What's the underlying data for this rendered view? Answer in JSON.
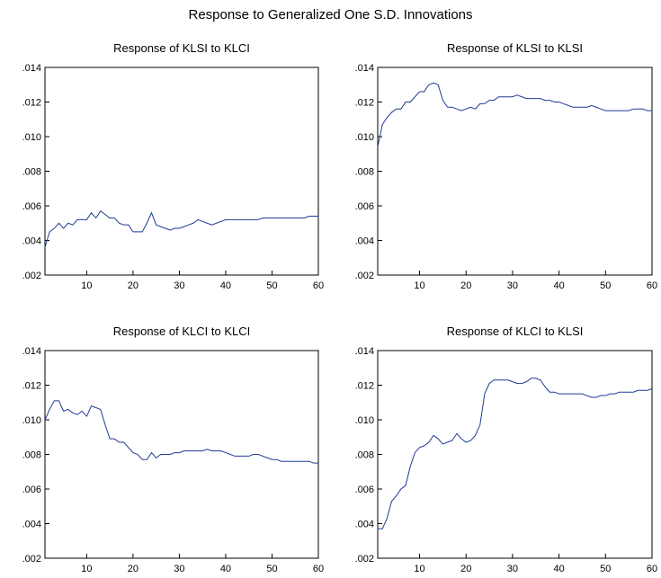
{
  "title": "Response to Generalized One S.D. Innovations",
  "colors": {
    "line": "#1f3a93",
    "frame": "#000000"
  },
  "chart_data": [
    {
      "type": "line",
      "title": "Response of KLSI to KLCI",
      "xlim": [
        1,
        60
      ],
      "ylim": [
        0.002,
        0.014
      ],
      "xticks": [
        10,
        20,
        30,
        40,
        50,
        60
      ],
      "yticks": [
        0.002,
        0.004,
        0.006,
        0.008,
        0.01,
        0.012,
        0.014
      ],
      "ytick_labels": [
        ".002",
        ".004",
        ".006",
        ".008",
        ".010",
        ".012",
        ".014"
      ],
      "series": [
        {
          "values": [
            0.0036,
            0.0045,
            0.0047,
            0.005,
            0.0047,
            0.005,
            0.0049,
            0.0052,
            0.0052,
            0.0052,
            0.0056,
            0.0053,
            0.0057,
            0.0055,
            0.0053,
            0.0053,
            0.005,
            0.0049,
            0.0049,
            0.0045,
            0.0045,
            0.0045,
            0.005,
            0.0056,
            0.0049,
            0.0048,
            0.0047,
            0.0046,
            0.0047,
            0.0047,
            0.0048,
            0.0049,
            0.005,
            0.0052,
            0.0051,
            0.005,
            0.0049,
            0.005,
            0.0051,
            0.0052,
            0.0052,
            0.0052,
            0.0052,
            0.0052,
            0.0052,
            0.0052,
            0.0052,
            0.0053,
            0.0053,
            0.0053,
            0.0053,
            0.0053,
            0.0053,
            0.0053,
            0.0053,
            0.0053,
            0.0053,
            0.0054,
            0.0054,
            0.0054
          ]
        }
      ]
    },
    {
      "type": "line",
      "title": "Response of KLSI to KLSI",
      "xlim": [
        1,
        60
      ],
      "ylim": [
        0.002,
        0.014
      ],
      "xticks": [
        10,
        20,
        30,
        40,
        50,
        60
      ],
      "yticks": [
        0.002,
        0.004,
        0.006,
        0.008,
        0.01,
        0.012,
        0.014
      ],
      "ytick_labels": [
        ".002",
        ".004",
        ".006",
        ".008",
        ".010",
        ".012",
        ".014"
      ],
      "series": [
        {
          "values": [
            0.0094,
            0.0107,
            0.0111,
            0.0114,
            0.0116,
            0.0116,
            0.012,
            0.012,
            0.0123,
            0.0126,
            0.0126,
            0.013,
            0.0131,
            0.013,
            0.0121,
            0.0117,
            0.0117,
            0.0116,
            0.0115,
            0.0116,
            0.0117,
            0.0116,
            0.0119,
            0.0119,
            0.0121,
            0.0121,
            0.0123,
            0.0123,
            0.0123,
            0.0123,
            0.0124,
            0.0123,
            0.0122,
            0.0122,
            0.0122,
            0.0122,
            0.0121,
            0.0121,
            0.012,
            0.012,
            0.0119,
            0.0118,
            0.0117,
            0.0117,
            0.0117,
            0.0117,
            0.0118,
            0.0117,
            0.0116,
            0.0115,
            0.0115,
            0.0115,
            0.0115,
            0.0115,
            0.0115,
            0.0116,
            0.0116,
            0.0116,
            0.0115,
            0.0115
          ]
        }
      ]
    },
    {
      "type": "line",
      "title": "Response of KLCI to KLCI",
      "xlim": [
        1,
        60
      ],
      "ylim": [
        0.002,
        0.014
      ],
      "xticks": [
        10,
        20,
        30,
        40,
        50,
        60
      ],
      "yticks": [
        0.002,
        0.004,
        0.006,
        0.008,
        0.01,
        0.012,
        0.014
      ],
      "ytick_labels": [
        ".002",
        ".004",
        ".006",
        ".008",
        ".010",
        ".012",
        ".014"
      ],
      "series": [
        {
          "values": [
            0.01,
            0.0106,
            0.0111,
            0.0111,
            0.0105,
            0.0106,
            0.0104,
            0.0103,
            0.0105,
            0.0102,
            0.0108,
            0.0107,
            0.0106,
            0.0097,
            0.0089,
            0.0089,
            0.0087,
            0.0087,
            0.0084,
            0.0081,
            0.008,
            0.0077,
            0.0077,
            0.0081,
            0.0078,
            0.008,
            0.008,
            0.008,
            0.0081,
            0.0081,
            0.0082,
            0.0082,
            0.0082,
            0.0082,
            0.0082,
            0.0083,
            0.0082,
            0.0082,
            0.0082,
            0.0081,
            0.008,
            0.0079,
            0.0079,
            0.0079,
            0.0079,
            0.008,
            0.008,
            0.0079,
            0.0078,
            0.0077,
            0.0077,
            0.0076,
            0.0076,
            0.0076,
            0.0076,
            0.0076,
            0.0076,
            0.0076,
            0.0075,
            0.0075
          ]
        }
      ]
    },
    {
      "type": "line",
      "title": "Response of KLCI to KLSI",
      "xlim": [
        1,
        60
      ],
      "ylim": [
        0.002,
        0.014
      ],
      "xticks": [
        10,
        20,
        30,
        40,
        50,
        60
      ],
      "yticks": [
        0.002,
        0.004,
        0.006,
        0.008,
        0.01,
        0.012,
        0.014
      ],
      "ytick_labels": [
        ".002",
        ".004",
        ".006",
        ".008",
        ".010",
        ".012",
        ".014"
      ],
      "series": [
        {
          "values": [
            0.0037,
            0.0037,
            0.0043,
            0.0053,
            0.0056,
            0.006,
            0.0062,
            0.0073,
            0.0081,
            0.0084,
            0.0085,
            0.0087,
            0.0091,
            0.0089,
            0.0086,
            0.0087,
            0.0088,
            0.0092,
            0.0089,
            0.0087,
            0.0088,
            0.0091,
            0.0097,
            0.0115,
            0.0121,
            0.0123,
            0.0123,
            0.0123,
            0.0123,
            0.0122,
            0.0121,
            0.0121,
            0.0122,
            0.0124,
            0.0124,
            0.0123,
            0.0119,
            0.0116,
            0.0116,
            0.0115,
            0.0115,
            0.0115,
            0.0115,
            0.0115,
            0.0115,
            0.0114,
            0.0113,
            0.0113,
            0.0114,
            0.0114,
            0.0115,
            0.0115,
            0.0116,
            0.0116,
            0.0116,
            0.0116,
            0.0117,
            0.0117,
            0.0117,
            0.0118
          ]
        }
      ]
    }
  ]
}
